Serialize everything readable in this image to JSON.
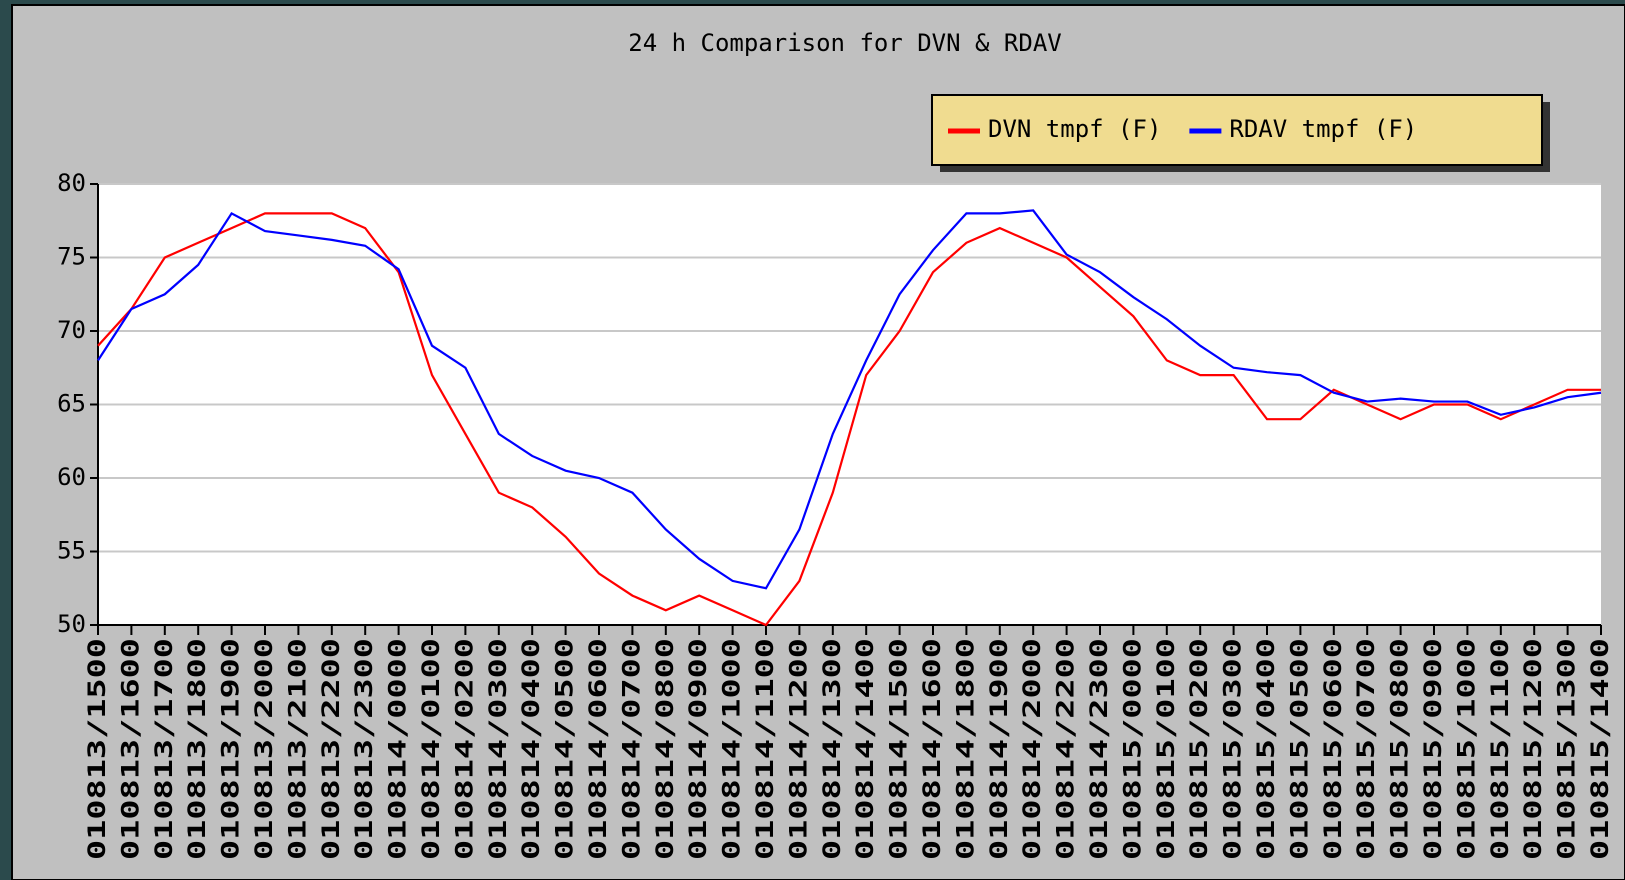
{
  "chart_data": {
    "type": "line",
    "title": "24 h Comparison for DVN & RDAV",
    "categories": [
      "010813/1500",
      "010813/1600",
      "010813/1700",
      "010813/1800",
      "010813/1900",
      "010813/2000",
      "010813/2100",
      "010813/2200",
      "010813/2300",
      "010814/0000",
      "010814/0100",
      "010814/0200",
      "010814/0300",
      "010814/0400",
      "010814/0500",
      "010814/0600",
      "010814/0700",
      "010814/0800",
      "010814/0900",
      "010814/1000",
      "010814/1100",
      "010814/1200",
      "010814/1300",
      "010814/1400",
      "010814/1500",
      "010814/1600",
      "010814/1800",
      "010814/1900",
      "010814/2000",
      "010814/2200",
      "010814/2300",
      "010815/0000",
      "010815/0100",
      "010815/0200",
      "010815/0300",
      "010815/0400",
      "010815/0500",
      "010815/0600",
      "010815/0700",
      "010815/0800",
      "010815/0900",
      "010815/1000",
      "010815/1100",
      "010815/1200",
      "010815/1300",
      "010815/1400"
    ],
    "series": [
      {
        "name": "DVN tmpf (F)",
        "color": "#ff0000",
        "values": [
          69,
          71.5,
          75,
          76,
          77,
          78,
          78,
          78,
          77,
          74,
          67,
          63,
          59,
          58,
          56,
          53.5,
          52,
          51,
          52,
          51,
          50,
          53,
          59,
          67,
          70,
          74,
          76,
          77,
          76,
          75,
          73,
          71,
          68,
          67,
          67,
          64,
          64,
          66,
          65,
          64,
          65,
          65,
          64,
          65,
          66,
          66
        ]
      },
      {
        "name": "RDAV tmpf (F)",
        "color": "#0000ff",
        "values": [
          68,
          71.5,
          72.5,
          74.5,
          78,
          76.8,
          76.5,
          76.2,
          75.8,
          74.2,
          69,
          67.5,
          63,
          61.5,
          60.5,
          60,
          59,
          56.5,
          54.5,
          53,
          52.5,
          56.5,
          63,
          68,
          72.5,
          75.5,
          78,
          78,
          78.2,
          75.2,
          74,
          72.3,
          70.8,
          69,
          67.5,
          67.2,
          67,
          65.8,
          65.2,
          65.4,
          65.2,
          65.2,
          64.3,
          64.8,
          65.5,
          65.8
        ]
      }
    ],
    "ylim": [
      50,
      80
    ],
    "yticks": [
      50,
      55,
      60,
      65,
      70,
      75,
      80
    ],
    "grid": true,
    "legend": "top-right"
  }
}
